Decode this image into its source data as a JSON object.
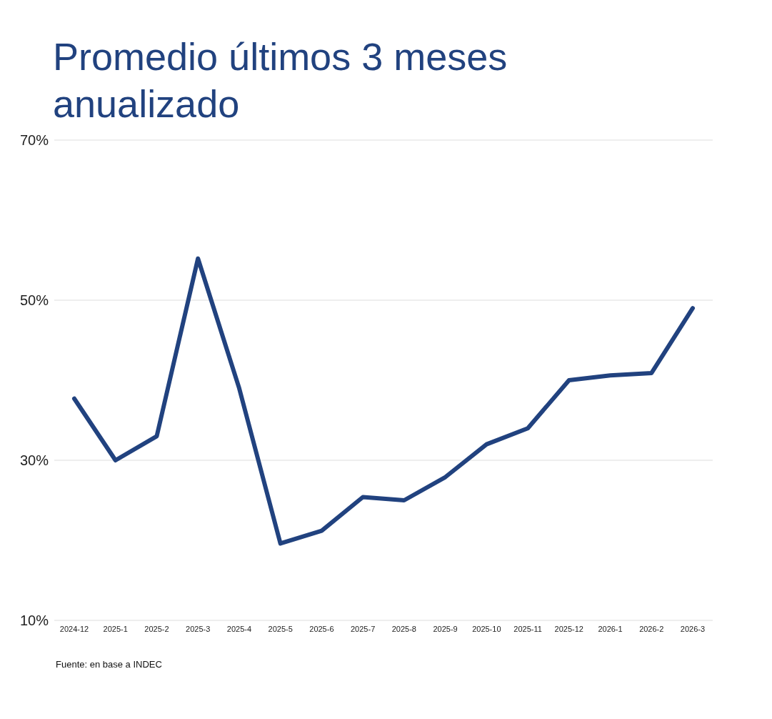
{
  "chart_data": {
    "type": "line",
    "title": "Promedio últimos 3 meses anualizado",
    "categories": [
      "2024-12",
      "2025-1",
      "2025-2",
      "2025-3",
      "2025-4",
      "2025-5",
      "2025-6",
      "2025-7",
      "2025-8",
      "2025-9",
      "2025-10",
      "2025-11",
      "2025-12",
      "2026-1",
      "2026-2",
      "2026-3"
    ],
    "series": [
      {
        "color": "#21427f",
        "values": [
          37.7,
          30,
          33,
          55.2,
          39,
          19.6,
          21.2,
          25.4,
          25,
          27.9,
          32,
          34,
          40,
          40.6,
          40.9,
          49
        ]
      }
    ],
    "ylim": [
      10,
      70
    ],
    "yticks": [
      {
        "value": 10,
        "label": "10%"
      },
      {
        "value": 30,
        "label": "30%"
      },
      {
        "value": 50,
        "label": "50%"
      },
      {
        "value": 70,
        "label": "70%"
      }
    ],
    "grid": "y",
    "marker": "none",
    "line_style": "solid",
    "annotations": [
      "Fuente: en base a INDEC"
    ]
  }
}
